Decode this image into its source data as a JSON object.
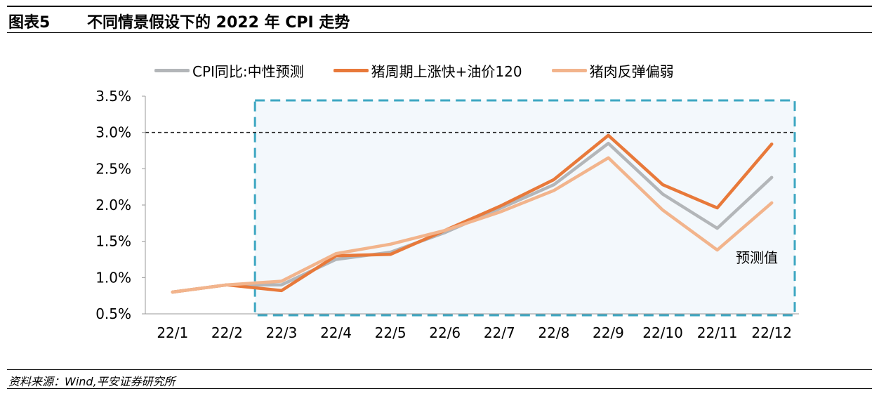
{
  "header": {
    "figure_number": "图表5",
    "title": "不同情景假设下的 2022 年 CPI 走势"
  },
  "source_note": "资料来源：Wind,平安证券研究所",
  "chart_data": {
    "type": "line",
    "title": "不同情景假设下的 2022 年 CPI 走势",
    "xlabel": "",
    "ylabel": "",
    "categories": [
      "22/1",
      "22/2",
      "22/3",
      "22/4",
      "22/5",
      "22/6",
      "22/7",
      "22/8",
      "22/9",
      "22/10",
      "22/11",
      "22/12"
    ],
    "y_ticks": [
      "0.5%",
      "1.0%",
      "1.5%",
      "2.0%",
      "2.5%",
      "3.0%",
      "3.5%"
    ],
    "ylim": [
      0.5,
      3.5
    ],
    "reference_line": 3.0,
    "forecast_region_label": "预测值",
    "forecast_start_category": "22/3",
    "legend_position": "top",
    "grid": false,
    "series": [
      {
        "name": "CPI同比:中性预测",
        "color": "#b3b6b9",
        "values": [
          0.8,
          0.9,
          0.9,
          1.25,
          1.35,
          1.62,
          1.95,
          2.28,
          2.85,
          2.15,
          1.68,
          2.38
        ]
      },
      {
        "name": "猪周期上涨快+油价120",
        "color": "#e8793a",
        "values": [
          0.8,
          0.9,
          0.82,
          1.3,
          1.32,
          1.65,
          1.98,
          2.35,
          2.96,
          2.28,
          1.96,
          2.84
        ]
      },
      {
        "name": "猪肉反弹偏弱",
        "color": "#f2b48c",
        "values": [
          0.8,
          0.9,
          0.95,
          1.33,
          1.46,
          1.65,
          1.9,
          2.2,
          2.65,
          1.93,
          1.38,
          2.03
        ]
      }
    ]
  }
}
